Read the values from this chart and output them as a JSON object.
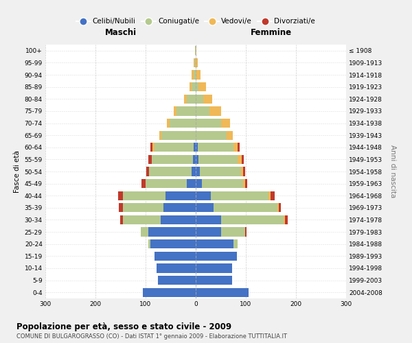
{
  "age_groups": [
    "0-4",
    "5-9",
    "10-14",
    "15-19",
    "20-24",
    "25-29",
    "30-34",
    "35-39",
    "40-44",
    "45-49",
    "50-54",
    "55-59",
    "60-64",
    "65-69",
    "70-74",
    "75-79",
    "80-84",
    "85-89",
    "90-94",
    "95-99",
    "100+"
  ],
  "birth_years": [
    "2004-2008",
    "1999-2003",
    "1994-1998",
    "1989-1993",
    "1984-1988",
    "1979-1983",
    "1974-1978",
    "1969-1973",
    "1964-1968",
    "1959-1963",
    "1954-1958",
    "1949-1953",
    "1944-1948",
    "1939-1943",
    "1934-1938",
    "1929-1933",
    "1924-1928",
    "1919-1923",
    "1914-1918",
    "1909-1913",
    "≤ 1908"
  ],
  "males_celibi": [
    105,
    75,
    78,
    82,
    90,
    95,
    70,
    65,
    60,
    18,
    8,
    6,
    4,
    0,
    0,
    0,
    0,
    0,
    0,
    0,
    0
  ],
  "males_coniugati": [
    0,
    0,
    0,
    0,
    5,
    15,
    75,
    80,
    85,
    82,
    85,
    82,
    78,
    68,
    52,
    38,
    18,
    8,
    4,
    2,
    1
  ],
  "males_vedovi": [
    0,
    0,
    0,
    0,
    0,
    0,
    0,
    0,
    0,
    0,
    0,
    0,
    4,
    4,
    5,
    6,
    5,
    4,
    4,
    2,
    1
  ],
  "males_divorziati": [
    0,
    0,
    0,
    0,
    0,
    0,
    5,
    8,
    10,
    8,
    5,
    6,
    5,
    0,
    0,
    0,
    0,
    0,
    0,
    0,
    0
  ],
  "females_nubili": [
    105,
    72,
    72,
    82,
    75,
    50,
    50,
    35,
    30,
    12,
    8,
    6,
    4,
    0,
    0,
    0,
    0,
    0,
    0,
    0,
    0
  ],
  "females_coniugate": [
    0,
    0,
    0,
    0,
    8,
    48,
    125,
    128,
    115,
    82,
    82,
    78,
    72,
    62,
    50,
    28,
    15,
    6,
    2,
    1,
    0
  ],
  "females_vedove": [
    0,
    0,
    0,
    0,
    0,
    0,
    3,
    3,
    4,
    4,
    5,
    8,
    8,
    12,
    18,
    22,
    18,
    15,
    8,
    3,
    2
  ],
  "females_divorziate": [
    0,
    0,
    0,
    0,
    0,
    4,
    6,
    4,
    8,
    5,
    4,
    4,
    4,
    0,
    0,
    0,
    0,
    0,
    0,
    0,
    0
  ],
  "colors": {
    "celibi": "#4472c4",
    "coniugati": "#b5c98e",
    "vedovi": "#f0b856",
    "divorziati": "#c0392b"
  },
  "xlim": 300,
  "xticks": [
    -300,
    -200,
    -100,
    0,
    100,
    200,
    300
  ],
  "title": "Popolazione per età, sesso e stato civile - 2009",
  "subtitle": "COMUNE DI BULGAROGRASSO (CO) - Dati ISTAT 1° gennaio 2009 - Elaborazione TUTTITALIA.IT",
  "ylabel_left": "Fasce di età",
  "ylabel_right": "Anni di nascita",
  "label_maschi": "Maschi",
  "label_femmine": "Femmine",
  "legend_labels": [
    "Celibi/Nubili",
    "Coniugati/e",
    "Vedovi/e",
    "Divorziati/e"
  ],
  "bg_color": "#f0f0f0",
  "plot_bg": "#ffffff"
}
